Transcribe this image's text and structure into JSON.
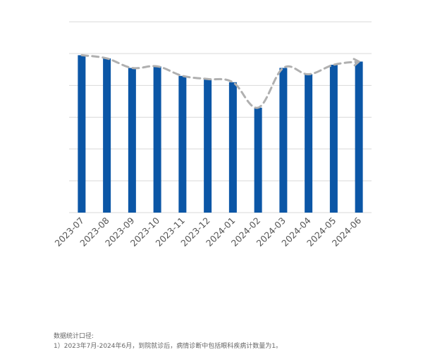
{
  "chart_data": {
    "type": "bar",
    "categories": [
      "2023-07",
      "2023-08",
      "2023-09",
      "2023-10",
      "2023-11",
      "2023-12",
      "2024-01",
      "2024-02",
      "2024-03",
      "2024-04",
      "2024-05",
      "2024-06"
    ],
    "values": [
      0.99,
      0.97,
      0.91,
      0.92,
      0.86,
      0.84,
      0.82,
      0.66,
      0.91,
      0.87,
      0.93,
      0.95
    ],
    "ylim": [
      0,
      1.2
    ],
    "grid": true,
    "trendline": {
      "style": "dashed",
      "color": "#b0b0b0",
      "arrow": true
    },
    "bar_color": "#0b56a6"
  },
  "notes": {
    "heading": "数据统计口径:",
    "line1": "1）2023年7月-2024年6月，到院就诊后，病情诊断中包括眼科疾病计数量为1。"
  }
}
